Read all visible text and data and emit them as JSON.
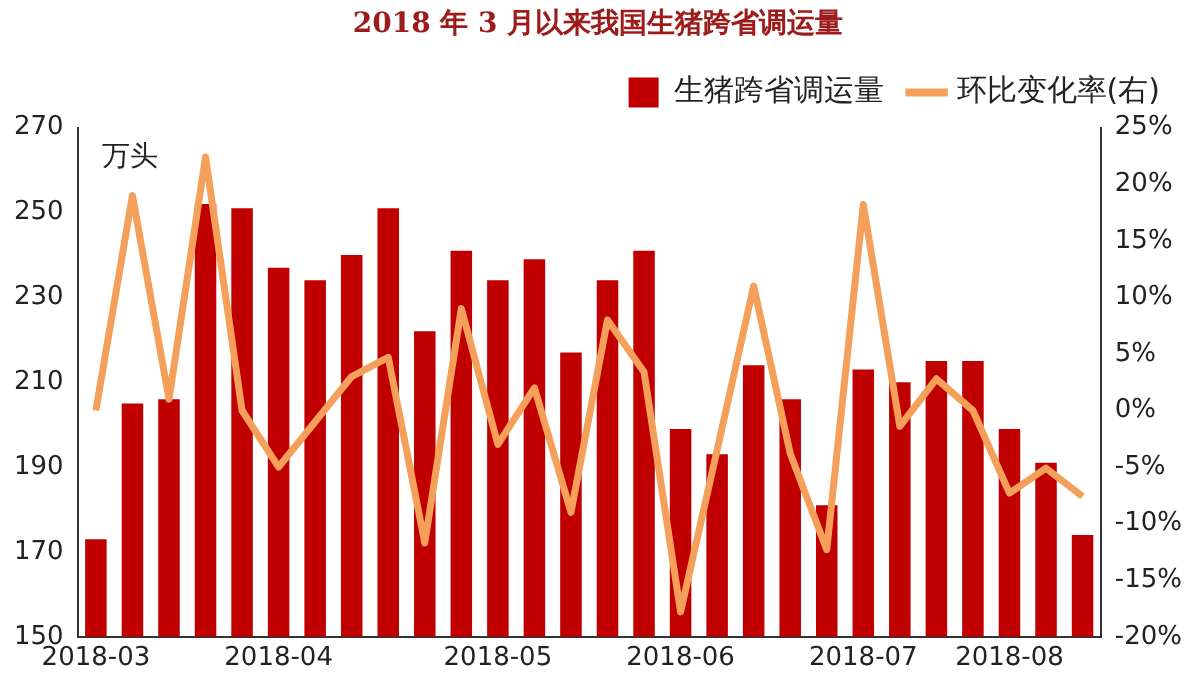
{
  "chart_data": {
    "type": "bar",
    "title": "2018 年 3 月以来我国生猪跨省调运量",
    "categories": [
      "2018-03",
      null,
      null,
      null,
      null,
      "2018-04",
      null,
      null,
      null,
      null,
      null,
      "2018-05",
      null,
      null,
      null,
      null,
      "2018-06",
      null,
      null,
      null,
      null,
      "2018-07",
      null,
      null,
      null,
      "2018-08",
      null,
      null
    ],
    "series": [
      {
        "name": "生猪跨省调运量",
        "color": "#c00000",
        "values": [
          173,
          205,
          206,
          252,
          251,
          237,
          234,
          240,
          251,
          222,
          241,
          234,
          239,
          217,
          234,
          241,
          199,
          193,
          214,
          206,
          181,
          213,
          210,
          215,
          215,
          199,
          191,
          174
        ]
      },
      {
        "name": "环比变化率(右)",
        "type": "line",
        "axis": "y2",
        "color": "#f5a05a",
        "values": [
          0,
          19,
          1,
          22.4,
          0,
          -5,
          -1,
          3,
          4.7,
          -11.7,
          9,
          -3,
          2,
          -9,
          8,
          3.4,
          -17.8,
          -3.5,
          11,
          -3.8,
          -12.3,
          18.2,
          -1.4,
          2.8,
          0,
          -7.3,
          -5.1,
          -7.6
        ]
      }
    ],
    "ylim": [
      150,
      270
    ],
    "yticks": [
      150,
      170,
      190,
      210,
      230,
      250,
      270
    ],
    "y2lim": [
      -20,
      25
    ],
    "y2ticks": [
      {
        "value": -20,
        "label": "-20%"
      },
      {
        "value": -15,
        "label": "-15%"
      },
      {
        "value": -10,
        "label": "-10%"
      },
      {
        "value": -5,
        "label": "-5%"
      },
      {
        "value": 0,
        "label": "0%"
      },
      {
        "value": 5,
        "label": "5%"
      },
      {
        "value": 10,
        "label": "10%"
      },
      {
        "value": 15,
        "label": "15%"
      },
      {
        "value": 20,
        "label": "20%"
      },
      {
        "value": 25,
        "label": "25%"
      }
    ],
    "annotations": [
      "万头"
    ],
    "legend": "top",
    "grid": false,
    "marker": "none",
    "line_style": "solid"
  }
}
